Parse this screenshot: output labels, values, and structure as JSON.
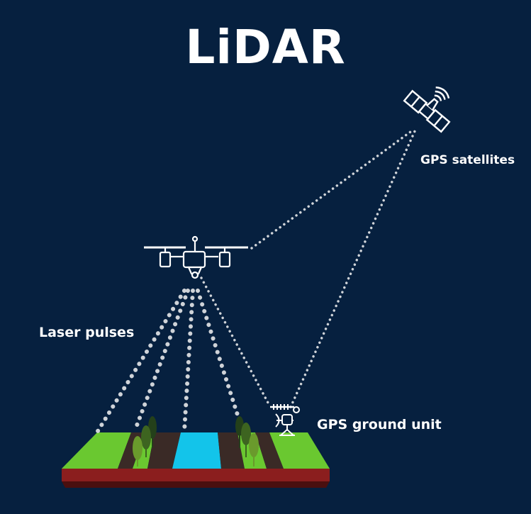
{
  "title": "LiDAR",
  "labels": {
    "satellites": "GPS satellites",
    "laser": "Laser pulses",
    "ground_unit": "GPS ground unit"
  },
  "colors": {
    "background": "#06203f",
    "grass": "#6ac830",
    "soil": "#3a2a26",
    "water": "#13c4ea",
    "tree_light": "#6a9a2c",
    "tree_dark": "#24401a",
    "base": "#8b1e1e",
    "device": "#ffffff",
    "dots": "#cfd3d8"
  }
}
